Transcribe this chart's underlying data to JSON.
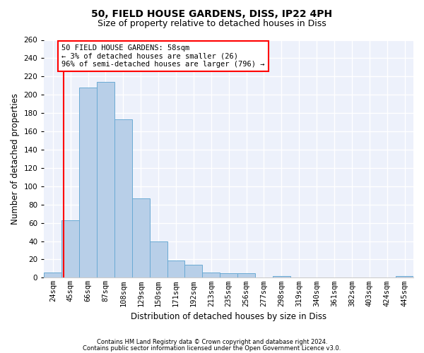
{
  "title1": "50, FIELD HOUSE GARDENS, DISS, IP22 4PH",
  "title2": "Size of property relative to detached houses in Diss",
  "xlabel": "Distribution of detached houses by size in Diss",
  "ylabel": "Number of detached properties",
  "bar_labels": [
    "24sqm",
    "45sqm",
    "66sqm",
    "87sqm",
    "108sqm",
    "129sqm",
    "150sqm",
    "171sqm",
    "192sqm",
    "213sqm",
    "235sqm",
    "256sqm",
    "277sqm",
    "298sqm",
    "319sqm",
    "340sqm",
    "361sqm",
    "382sqm",
    "403sqm",
    "424sqm",
    "445sqm"
  ],
  "bar_values": [
    6,
    63,
    208,
    214,
    173,
    87,
    40,
    19,
    14,
    6,
    5,
    5,
    0,
    2,
    0,
    0,
    0,
    0,
    0,
    0,
    2
  ],
  "bar_color": "#b8cfe8",
  "bar_edge_color": "#6aaad4",
  "ylim": [
    0,
    260
  ],
  "yticks": [
    0,
    20,
    40,
    60,
    80,
    100,
    120,
    140,
    160,
    180,
    200,
    220,
    240,
    260
  ],
  "property_sqm": 58,
  "property_bin_index": 1,
  "annotation_text": "50 FIELD HOUSE GARDENS: 58sqm\n← 3% of detached houses are smaller (26)\n96% of semi-detached houses are larger (796) →",
  "annotation_box_color": "white",
  "annotation_border_color": "red",
  "vline_color": "red",
  "footer1": "Contains HM Land Registry data © Crown copyright and database right 2024.",
  "footer2": "Contains public sector information licensed under the Open Government Licence v3.0.",
  "bg_color": "#edf1fb",
  "title1_fontsize": 10,
  "title2_fontsize": 9,
  "xlabel_fontsize": 8.5,
  "ylabel_fontsize": 8.5,
  "tick_fontsize": 7.5,
  "annotation_fontsize": 7.5,
  "footer_fontsize": 6.0
}
